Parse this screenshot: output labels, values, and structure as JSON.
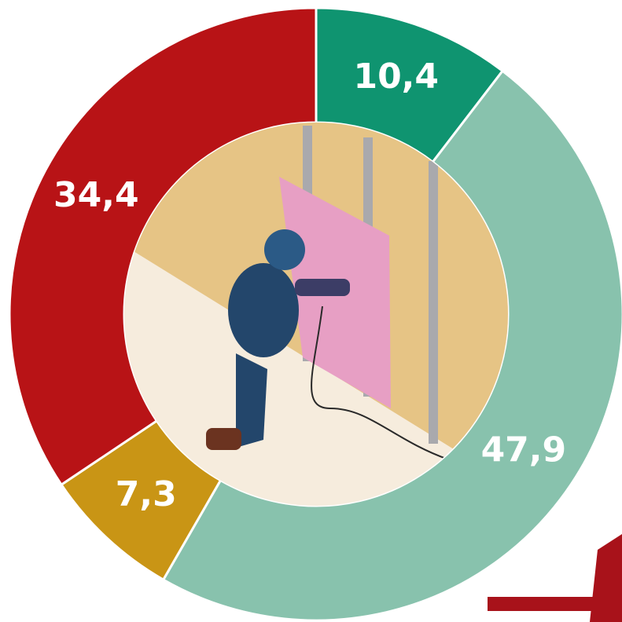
{
  "chart_data": {
    "type": "donut",
    "categories": [
      null,
      null,
      null,
      null
    ],
    "values": [
      10.4,
      47.9,
      7.3,
      34.4
    ],
    "value_labels": [
      "10,4",
      "47,9",
      "7,3",
      "34,4"
    ],
    "colors": [
      "#0f9470",
      "#88c2ad",
      "#c99515",
      "#b81316"
    ]
  }
}
